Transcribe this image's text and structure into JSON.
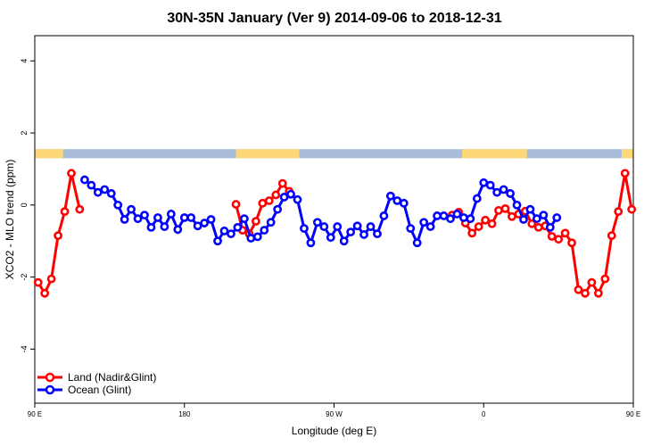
{
  "chart_data": {
    "type": "line",
    "title": "30N-35N January (Ver 9)   2014-09-06 to 2018-12-31",
    "xlabel": "Longitude (deg E)",
    "ylabel": "XCO2 - MLO trend (ppm)",
    "xlim": [
      90,
      450
    ],
    "ylim": [
      -5.5,
      4.7
    ],
    "xticks": [
      {
        "value": 90,
        "label": "90 E"
      },
      {
        "value": 180,
        "label": "180"
      },
      {
        "value": 270,
        "label": "90 W"
      },
      {
        "value": 360,
        "label": "0"
      },
      {
        "value": 450,
        "label": "90 E"
      },
      {
        "value": 540,
        "label": "180"
      }
    ],
    "yticks": [
      {
        "value": 4,
        "label": "4"
      },
      {
        "value": 2,
        "label": "2"
      },
      {
        "value": 0,
        "label": "0"
      },
      {
        "value": -2,
        "label": "-2"
      },
      {
        "value": -4,
        "label": "-4"
      }
    ],
    "grid": false,
    "legend_position": "bottom-left",
    "surface_band": {
      "y_range": [
        1.3,
        1.55
      ],
      "land_color": "#fdd878",
      "ocean_color": "#a9bddb",
      "land_segments": [
        [
          90,
          107
        ],
        [
          211,
          249
        ],
        [
          347,
          386
        ],
        [
          443,
          496
        ]
      ]
    },
    "series": [
      {
        "name": "Land (Nadir&Glint)",
        "color": "#ff0000",
        "x": [
          92,
          96,
          100,
          104,
          108,
          112,
          117,
          211,
          215,
          219,
          223,
          227,
          231,
          235,
          239,
          243,
          341,
          345,
          349,
          353,
          357,
          361,
          365,
          369,
          373,
          377,
          381,
          385,
          389,
          393,
          397,
          401,
          405,
          409,
          413,
          417,
          421,
          425,
          429,
          433,
          437,
          441,
          445,
          449,
          453,
          457
        ],
        "y": [
          -2.15,
          -2.45,
          -2.05,
          -0.85,
          -0.18,
          0.88,
          -0.12,
          0.02,
          -0.7,
          -0.8,
          -0.45,
          0.05,
          0.12,
          0.28,
          0.6,
          0.38,
          -0.28,
          -0.2,
          -0.5,
          -0.78,
          -0.6,
          -0.42,
          -0.52,
          -0.15,
          -0.1,
          -0.32,
          -0.25,
          -0.17,
          -0.52,
          -0.62,
          -0.58,
          -0.87,
          -0.95,
          -0.78,
          -1.05,
          -2.35,
          -2.45,
          -2.15,
          -2.45,
          -2.05,
          -0.85,
          -0.18,
          0.88,
          -0.12,
          0.02,
          -0.7
        ]
      },
      {
        "name": "Ocean (Glint)",
        "color": "#0000ff",
        "x": [
          120,
          124,
          128,
          132,
          136,
          140,
          144,
          148,
          152,
          156,
          160,
          164,
          168,
          172,
          176,
          180,
          184,
          188,
          192,
          196,
          200,
          204,
          208,
          212,
          216,
          220,
          224,
          228,
          232,
          236,
          240,
          244,
          248,
          252,
          256,
          260,
          264,
          268,
          272,
          276,
          280,
          284,
          288,
          292,
          296,
          300,
          304,
          308,
          312,
          316,
          320,
          324,
          328,
          332,
          336,
          340,
          344,
          348,
          352,
          356,
          360,
          364,
          368,
          372,
          376,
          380,
          384,
          388,
          392,
          396,
          400,
          404
        ],
        "y": [
          0.7,
          0.55,
          0.35,
          0.43,
          0.32,
          0.0,
          -0.4,
          -0.12,
          -0.38,
          -0.28,
          -0.62,
          -0.35,
          -0.6,
          -0.25,
          -0.68,
          -0.35,
          -0.35,
          -0.58,
          -0.5,
          -0.4,
          -1.0,
          -0.72,
          -0.8,
          -0.62,
          -0.38,
          -0.92,
          -0.88,
          -0.7,
          -0.48,
          -0.12,
          0.22,
          0.3,
          0.15,
          -0.65,
          -1.05,
          -0.48,
          -0.6,
          -0.9,
          -0.6,
          -1.0,
          -0.75,
          -0.58,
          -0.82,
          -0.6,
          -0.8,
          -0.3,
          0.25,
          0.12,
          0.05,
          -0.65,
          -1.05,
          -0.48,
          -0.6,
          -0.3,
          -0.3,
          -0.38,
          -0.25,
          -0.35,
          -0.38,
          0.18,
          0.62,
          0.55,
          0.35,
          0.43,
          0.32,
          0.0,
          -0.4,
          -0.12,
          -0.38,
          -0.28,
          -0.62,
          -0.35
        ]
      }
    ]
  }
}
